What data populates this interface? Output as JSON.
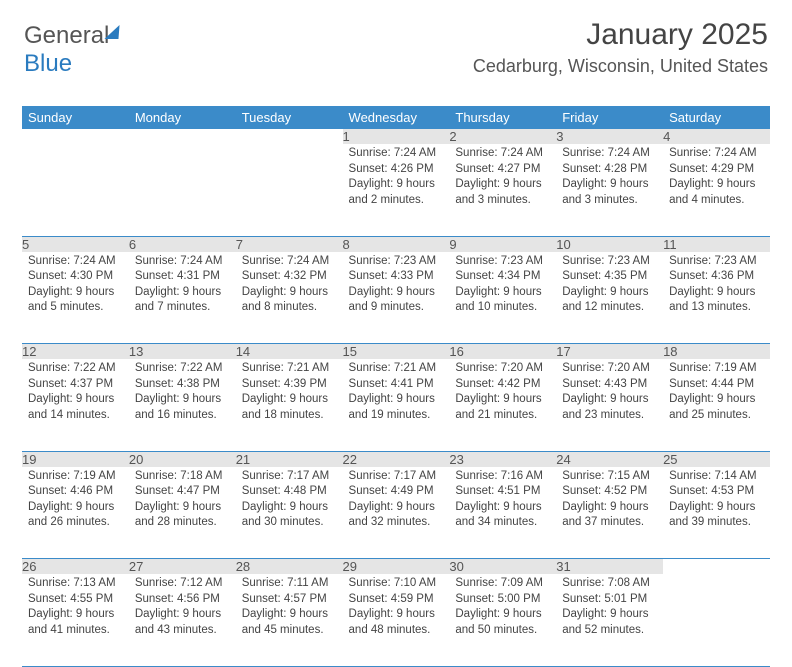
{
  "brand": {
    "part1": "General",
    "part2": "Blue"
  },
  "title": "January 2025",
  "location": "Cedarburg, Wisconsin, United States",
  "colors": {
    "header_bg": "#3b8bc9",
    "header_text": "#ffffff",
    "daynum_bg": "#e5e5e5",
    "border": "#3b8bc9",
    "text": "#444444",
    "brand_blue": "#2a7bbf"
  },
  "fonts": {
    "title_size": 30,
    "location_size": 18,
    "header_size": 13,
    "cell_size": 11.5
  },
  "dayHeaders": [
    "Sunday",
    "Monday",
    "Tuesday",
    "Wednesday",
    "Thursday",
    "Friday",
    "Saturday"
  ],
  "weeks": [
    [
      null,
      null,
      null,
      {
        "n": "1",
        "sr": "Sunrise: 7:24 AM",
        "ss": "Sunset: 4:26 PM",
        "d1": "Daylight: 9 hours",
        "d2": "and 2 minutes."
      },
      {
        "n": "2",
        "sr": "Sunrise: 7:24 AM",
        "ss": "Sunset: 4:27 PM",
        "d1": "Daylight: 9 hours",
        "d2": "and 3 minutes."
      },
      {
        "n": "3",
        "sr": "Sunrise: 7:24 AM",
        "ss": "Sunset: 4:28 PM",
        "d1": "Daylight: 9 hours",
        "d2": "and 3 minutes."
      },
      {
        "n": "4",
        "sr": "Sunrise: 7:24 AM",
        "ss": "Sunset: 4:29 PM",
        "d1": "Daylight: 9 hours",
        "d2": "and 4 minutes."
      }
    ],
    [
      {
        "n": "5",
        "sr": "Sunrise: 7:24 AM",
        "ss": "Sunset: 4:30 PM",
        "d1": "Daylight: 9 hours",
        "d2": "and 5 minutes."
      },
      {
        "n": "6",
        "sr": "Sunrise: 7:24 AM",
        "ss": "Sunset: 4:31 PM",
        "d1": "Daylight: 9 hours",
        "d2": "and 7 minutes."
      },
      {
        "n": "7",
        "sr": "Sunrise: 7:24 AM",
        "ss": "Sunset: 4:32 PM",
        "d1": "Daylight: 9 hours",
        "d2": "and 8 minutes."
      },
      {
        "n": "8",
        "sr": "Sunrise: 7:23 AM",
        "ss": "Sunset: 4:33 PM",
        "d1": "Daylight: 9 hours",
        "d2": "and 9 minutes."
      },
      {
        "n": "9",
        "sr": "Sunrise: 7:23 AM",
        "ss": "Sunset: 4:34 PM",
        "d1": "Daylight: 9 hours",
        "d2": "and 10 minutes."
      },
      {
        "n": "10",
        "sr": "Sunrise: 7:23 AM",
        "ss": "Sunset: 4:35 PM",
        "d1": "Daylight: 9 hours",
        "d2": "and 12 minutes."
      },
      {
        "n": "11",
        "sr": "Sunrise: 7:23 AM",
        "ss": "Sunset: 4:36 PM",
        "d1": "Daylight: 9 hours",
        "d2": "and 13 minutes."
      }
    ],
    [
      {
        "n": "12",
        "sr": "Sunrise: 7:22 AM",
        "ss": "Sunset: 4:37 PM",
        "d1": "Daylight: 9 hours",
        "d2": "and 14 minutes."
      },
      {
        "n": "13",
        "sr": "Sunrise: 7:22 AM",
        "ss": "Sunset: 4:38 PM",
        "d1": "Daylight: 9 hours",
        "d2": "and 16 minutes."
      },
      {
        "n": "14",
        "sr": "Sunrise: 7:21 AM",
        "ss": "Sunset: 4:39 PM",
        "d1": "Daylight: 9 hours",
        "d2": "and 18 minutes."
      },
      {
        "n": "15",
        "sr": "Sunrise: 7:21 AM",
        "ss": "Sunset: 4:41 PM",
        "d1": "Daylight: 9 hours",
        "d2": "and 19 minutes."
      },
      {
        "n": "16",
        "sr": "Sunrise: 7:20 AM",
        "ss": "Sunset: 4:42 PM",
        "d1": "Daylight: 9 hours",
        "d2": "and 21 minutes."
      },
      {
        "n": "17",
        "sr": "Sunrise: 7:20 AM",
        "ss": "Sunset: 4:43 PM",
        "d1": "Daylight: 9 hours",
        "d2": "and 23 minutes."
      },
      {
        "n": "18",
        "sr": "Sunrise: 7:19 AM",
        "ss": "Sunset: 4:44 PM",
        "d1": "Daylight: 9 hours",
        "d2": "and 25 minutes."
      }
    ],
    [
      {
        "n": "19",
        "sr": "Sunrise: 7:19 AM",
        "ss": "Sunset: 4:46 PM",
        "d1": "Daylight: 9 hours",
        "d2": "and 26 minutes."
      },
      {
        "n": "20",
        "sr": "Sunrise: 7:18 AM",
        "ss": "Sunset: 4:47 PM",
        "d1": "Daylight: 9 hours",
        "d2": "and 28 minutes."
      },
      {
        "n": "21",
        "sr": "Sunrise: 7:17 AM",
        "ss": "Sunset: 4:48 PM",
        "d1": "Daylight: 9 hours",
        "d2": "and 30 minutes."
      },
      {
        "n": "22",
        "sr": "Sunrise: 7:17 AM",
        "ss": "Sunset: 4:49 PM",
        "d1": "Daylight: 9 hours",
        "d2": "and 32 minutes."
      },
      {
        "n": "23",
        "sr": "Sunrise: 7:16 AM",
        "ss": "Sunset: 4:51 PM",
        "d1": "Daylight: 9 hours",
        "d2": "and 34 minutes."
      },
      {
        "n": "24",
        "sr": "Sunrise: 7:15 AM",
        "ss": "Sunset: 4:52 PM",
        "d1": "Daylight: 9 hours",
        "d2": "and 37 minutes."
      },
      {
        "n": "25",
        "sr": "Sunrise: 7:14 AM",
        "ss": "Sunset: 4:53 PM",
        "d1": "Daylight: 9 hours",
        "d2": "and 39 minutes."
      }
    ],
    [
      {
        "n": "26",
        "sr": "Sunrise: 7:13 AM",
        "ss": "Sunset: 4:55 PM",
        "d1": "Daylight: 9 hours",
        "d2": "and 41 minutes."
      },
      {
        "n": "27",
        "sr": "Sunrise: 7:12 AM",
        "ss": "Sunset: 4:56 PM",
        "d1": "Daylight: 9 hours",
        "d2": "and 43 minutes."
      },
      {
        "n": "28",
        "sr": "Sunrise: 7:11 AM",
        "ss": "Sunset: 4:57 PM",
        "d1": "Daylight: 9 hours",
        "d2": "and 45 minutes."
      },
      {
        "n": "29",
        "sr": "Sunrise: 7:10 AM",
        "ss": "Sunset: 4:59 PM",
        "d1": "Daylight: 9 hours",
        "d2": "and 48 minutes."
      },
      {
        "n": "30",
        "sr": "Sunrise: 7:09 AM",
        "ss": "Sunset: 5:00 PM",
        "d1": "Daylight: 9 hours",
        "d2": "and 50 minutes."
      },
      {
        "n": "31",
        "sr": "Sunrise: 7:08 AM",
        "ss": "Sunset: 5:01 PM",
        "d1": "Daylight: 9 hours",
        "d2": "and 52 minutes."
      },
      null
    ]
  ]
}
